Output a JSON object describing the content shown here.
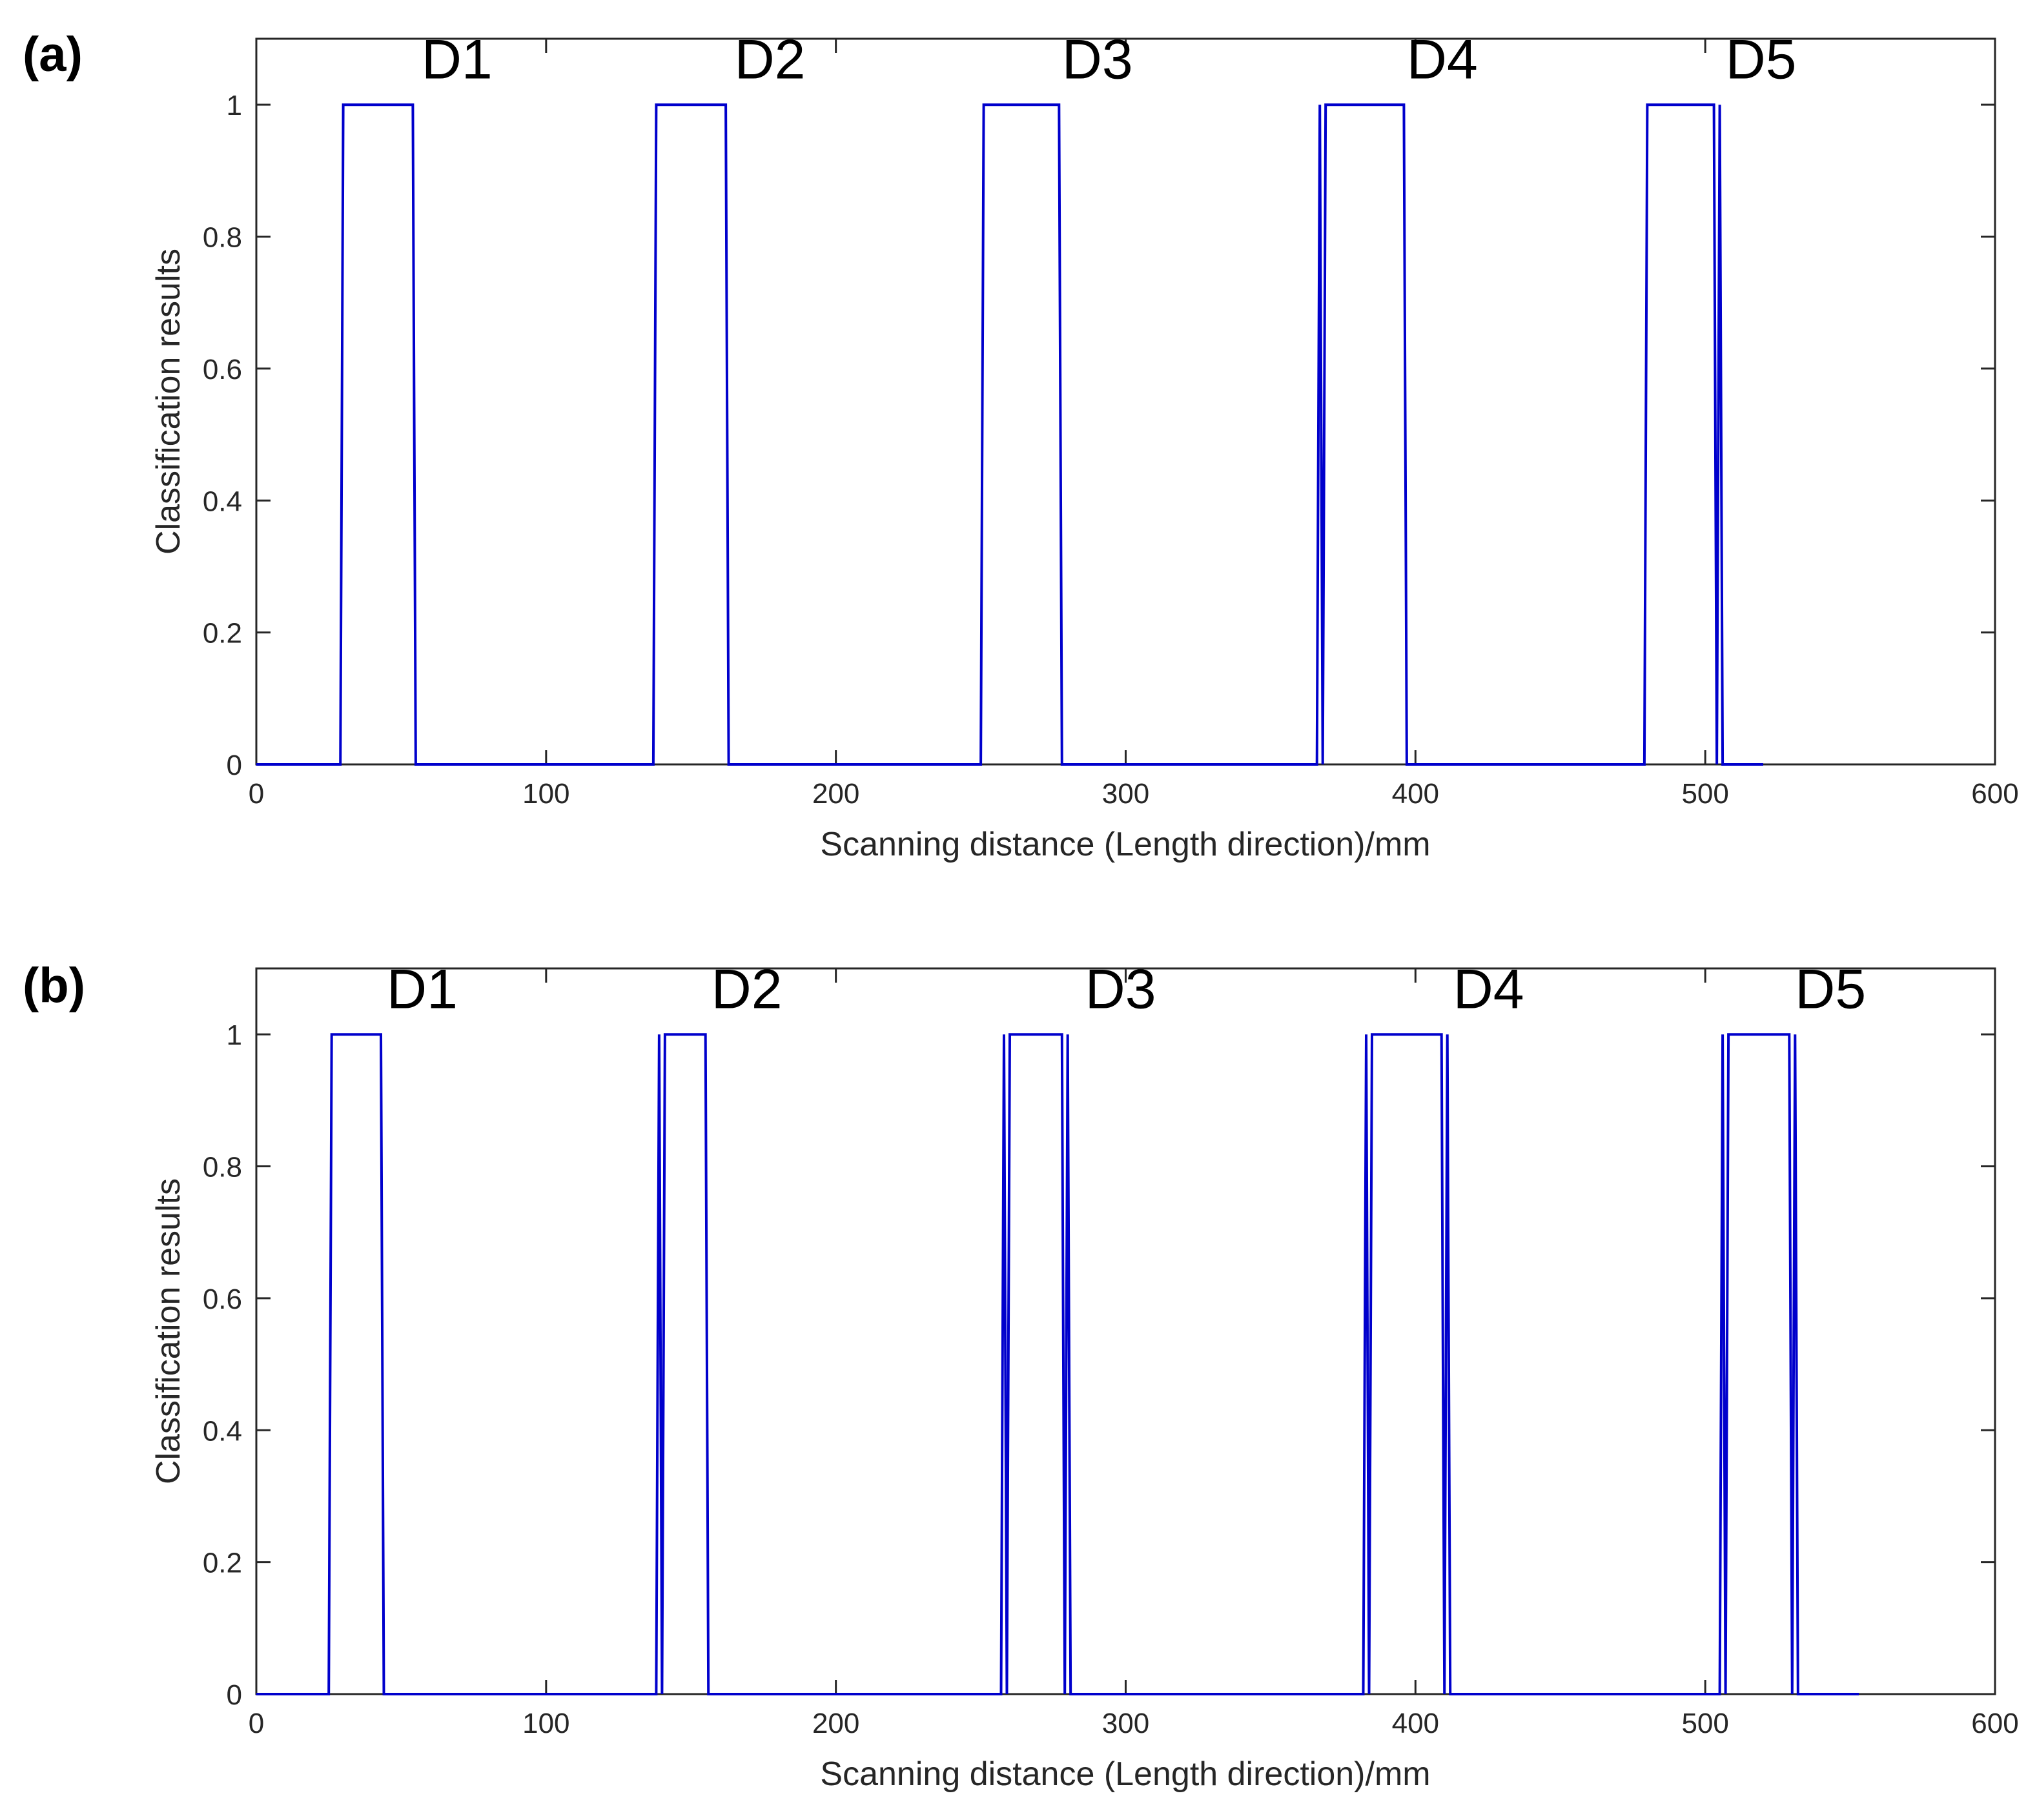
{
  "chart_data": [
    {
      "type": "line",
      "panel_label": "(a)",
      "xlabel": "Scanning distance (Length direction)/mm",
      "ylabel": "Classification results",
      "xlim": [
        0,
        600
      ],
      "ylim": [
        0,
        1.1
      ],
      "xticks": [
        0,
        100,
        200,
        300,
        400,
        500,
        600
      ],
      "yticks": [
        0,
        0.2,
        0.4,
        0.6,
        0.8,
        1
      ],
      "ytick_labels": [
        "0",
        "0.2",
        "0.4",
        "0.6",
        "0.8",
        "1"
      ],
      "grid": false,
      "line_color": "#0000cc",
      "series": [
        {
          "x": [
            0,
            29,
            30,
            54,
            55,
            137,
            138,
            162,
            163,
            250,
            251,
            277,
            278,
            366,
            367,
            368,
            369,
            396,
            397,
            479,
            480,
            503,
            504,
            505,
            506,
            520
          ],
          "y": [
            0,
            0,
            1,
            1,
            0,
            0,
            1,
            1,
            0,
            0,
            1,
            1,
            0,
            0,
            1,
            0,
            1,
            1,
            0,
            0,
            1,
            1,
            0,
            1,
            0,
            0
          ]
        }
      ],
      "annotations": [
        {
          "text": "D1",
          "x": 57,
          "y": 1.04
        },
        {
          "text": "D2",
          "x": 165,
          "y": 1.04
        },
        {
          "text": "D3",
          "x": 278,
          "y": 1.04
        },
        {
          "text": "D4",
          "x": 397,
          "y": 1.04
        },
        {
          "text": "D5",
          "x": 507,
          "y": 1.04
        }
      ]
    },
    {
      "type": "line",
      "panel_label": "(b)",
      "xlabel": "Scanning distance (Length direction)/mm",
      "ylabel": "Classification results",
      "xlim": [
        0,
        600
      ],
      "ylim": [
        0,
        1.1
      ],
      "xticks": [
        0,
        100,
        200,
        300,
        400,
        500,
        600
      ],
      "yticks": [
        0,
        0.2,
        0.4,
        0.6,
        0.8,
        1
      ],
      "ytick_labels": [
        "0",
        "0.2",
        "0.4",
        "0.6",
        "0.8",
        "1"
      ],
      "grid": false,
      "line_color": "#0000cc",
      "series": [
        {
          "x": [
            0,
            25,
            26,
            43,
            44,
            138,
            139,
            140,
            141,
            155,
            156,
            257,
            258,
            259,
            260,
            278,
            279,
            280,
            281,
            382,
            383,
            384,
            385,
            409,
            410,
            411,
            412,
            505,
            506,
            507,
            508,
            529,
            530,
            531,
            532,
            553
          ],
          "y": [
            0,
            0,
            1,
            1,
            0,
            0,
            1,
            0,
            1,
            1,
            0,
            0,
            1,
            0,
            1,
            1,
            0,
            1,
            0,
            0,
            1,
            0,
            1,
            1,
            0,
            1,
            0,
            0,
            1,
            0,
            1,
            1,
            0,
            1,
            0,
            0
          ]
        }
      ],
      "annotations": [
        {
          "text": "D1",
          "x": 45,
          "y": 1.04
        },
        {
          "text": "D2",
          "x": 157,
          "y": 1.04
        },
        {
          "text": "D3",
          "x": 286,
          "y": 1.04
        },
        {
          "text": "D4",
          "x": 413,
          "y": 1.04
        },
        {
          "text": "D5",
          "x": 531,
          "y": 1.04
        }
      ]
    }
  ]
}
